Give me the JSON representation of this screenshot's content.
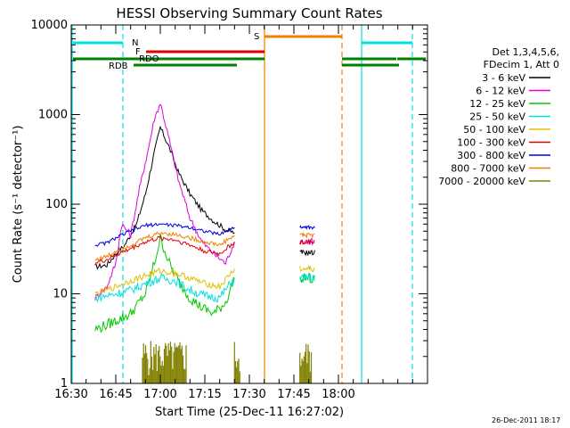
{
  "chart_data": {
    "type": "line",
    "title": "HESSI Observing Summary Count Rates",
    "xlabel": "Start Time (25-Dec-11 16:27:02)",
    "ylabel": "Count Rate (s⁻¹ detector⁻¹)",
    "ylog": true,
    "ylim": [
      1,
      10000
    ],
    "xlim_minutes": [
      16.5,
      18.5
    ],
    "x_ticks": [
      "16:30",
      "16:45",
      "17:00",
      "17:15",
      "17:30",
      "17:45",
      "18:00"
    ],
    "y_ticks": [
      "1",
      "10",
      "100",
      "1000",
      "10000"
    ],
    "legend_header": [
      "Det 1,3,4,5,6,",
      "FDecim 1, Att 0"
    ],
    "legend_position": "right",
    "timestamp": "26-Dec-2011 18:17",
    "series": [
      {
        "name": "3 - 6 keV",
        "color": "#000000",
        "t": [
          "16:38",
          "16:42",
          "16:45",
          "16:48",
          "16:52",
          "16:55",
          "16:58",
          "17:00",
          "17:03",
          "17:06",
          "17:10",
          "17:14",
          "17:18",
          "17:22",
          "17:25"
        ],
        "values": [
          20,
          21,
          28,
          35,
          60,
          130,
          380,
          720,
          430,
          230,
          130,
          85,
          65,
          52,
          48
        ]
      },
      {
        "name": "6 - 12 keV",
        "color": "#e000e0",
        "t": [
          "16:38",
          "16:42",
          "16:45",
          "16:47",
          "16:50",
          "16:53",
          "16:56",
          "16:58",
          "17:00",
          "17:03",
          "17:06",
          "17:10",
          "17:14",
          "17:18",
          "17:22",
          "17:25"
        ],
        "values": [
          9,
          12,
          22,
          60,
          45,
          150,
          420,
          900,
          1350,
          520,
          190,
          70,
          38,
          28,
          22,
          38
        ]
      },
      {
        "name": "12 - 25 keV",
        "color": "#00c800",
        "t": [
          "16:38",
          "16:42",
          "16:45",
          "16:50",
          "16:55",
          "16:58",
          "17:00",
          "17:03",
          "17:06",
          "17:10",
          "17:14",
          "17:18",
          "17:22",
          "17:25"
        ],
        "values": [
          4,
          4.5,
          5,
          6,
          10,
          22,
          42,
          22,
          14,
          9,
          7,
          6,
          8,
          15
        ]
      },
      {
        "name": "25 - 50 keV",
        "color": "#00e0e0",
        "t": [
          "16:38",
          "16:42",
          "16:45",
          "16:50",
          "16:55",
          "17:00",
          "17:05",
          "17:10",
          "17:15",
          "17:20",
          "17:25"
        ],
        "values": [
          9,
          9.5,
          10,
          11,
          13,
          15,
          14,
          11,
          9.5,
          9,
          15
        ]
      },
      {
        "name": "50 - 100 keV",
        "color": "#e0c000",
        "t": [
          "16:38",
          "16:42",
          "16:45",
          "16:50",
          "16:55",
          "17:00",
          "17:05",
          "17:10",
          "17:15",
          "17:20",
          "17:25"
        ],
        "values": [
          10,
          11,
          12,
          14,
          16,
          18,
          17,
          15,
          13,
          12,
          19
        ]
      },
      {
        "name": "100 - 300 keV",
        "color": "#e00000",
        "t": [
          "16:38",
          "16:42",
          "16:45",
          "16:50",
          "16:55",
          "17:00",
          "17:05",
          "17:10",
          "17:15",
          "17:20",
          "17:25"
        ],
        "values": [
          22,
          24,
          27,
          32,
          38,
          42,
          40,
          35,
          30,
          28,
          38
        ]
      },
      {
        "name": "300 - 800 keV",
        "color": "#0000e0",
        "t": [
          "16:38",
          "16:42",
          "16:45",
          "16:50",
          "16:55",
          "17:00",
          "17:05",
          "17:10",
          "17:15",
          "17:20",
          "17:25"
        ],
        "values": [
          35,
          37,
          42,
          50,
          58,
          60,
          58,
          55,
          50,
          46,
          55
        ]
      },
      {
        "name": "800 - 7000 keV",
        "color": "#f08000",
        "t": [
          "16:38",
          "16:42",
          "16:45",
          "16:50",
          "16:55",
          "17:00",
          "17:05",
          "17:10",
          "17:15",
          "17:20",
          "17:25"
        ],
        "values": [
          24,
          26,
          30,
          35,
          42,
          48,
          46,
          42,
          38,
          35,
          45
        ]
      },
      {
        "name": "7000 - 20000 keV",
        "color": "#808000",
        "t": [
          "16:54",
          "16:57",
          "17:00",
          "17:03",
          "17:06",
          "17:09"
        ],
        "values": [
          1.8,
          2.2,
          2.5,
          2.3,
          2.0,
          1.8
        ]
      }
    ],
    "flags": [
      {
        "label": "N",
        "color": "#00e0e0"
      },
      {
        "label": "F",
        "color": "#e00000"
      },
      {
        "label": "RDO",
        "color": "#008000"
      },
      {
        "label": "RDB",
        "color": "#008000"
      },
      {
        "label": "S",
        "color": "#f08000"
      }
    ]
  }
}
